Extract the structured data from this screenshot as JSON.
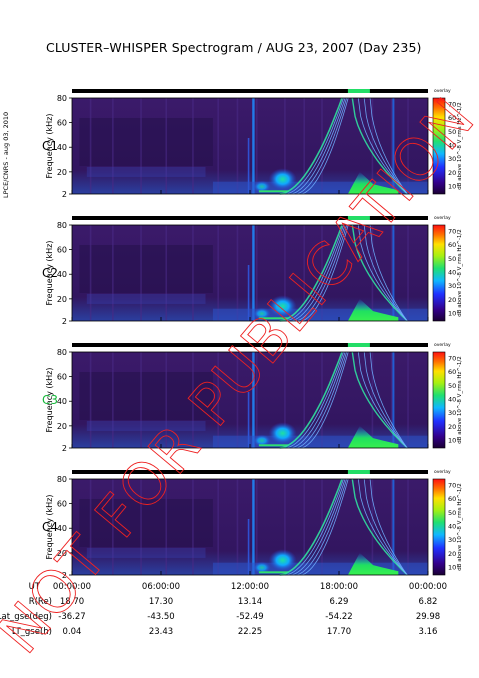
{
  "header": {
    "title": "CLUSTER–WHISPER Spectrogram / AUG 23, 2007 (Day 235)",
    "side_label": "LPCE/CNRS - aug 03, 2010",
    "watermark": "NOT FOR PUBLICATION"
  },
  "colors": {
    "background_field": "#3a1866",
    "spacecraft_label_default": "#000000",
    "spacecraft_label_c3": "#18b83c",
    "status_bar": "#000000",
    "status_marks": "#22dd66",
    "watermark": "#ee2222"
  },
  "chart_data": {
    "type": "heatmap",
    "xlabel": "",
    "ylabel": "Frequency (kHz)",
    "colorbar_label": "dB above 10^-8 V_rms Hz^-1/2",
    "colorbar_top_label": "overlay",
    "colorbar_ticks": [
      "10",
      "20",
      "30",
      "40",
      "50",
      "60",
      "70"
    ],
    "y_ticks": [
      "2",
      "20",
      "40",
      "60",
      "80"
    ],
    "x_ticks": [
      "00:00:00",
      "06:00:00",
      "12:00:00",
      "18:00:00",
      "00:00:00"
    ],
    "ylim": [
      2,
      80
    ],
    "xlim_hours": [
      0,
      24
    ],
    "panels": [
      {
        "spacecraft": "C1",
        "highlight": false
      },
      {
        "spacecraft": "C2",
        "highlight": false
      },
      {
        "spacecraft": "C3",
        "highlight": true
      },
      {
        "spacecraft": "C4",
        "highlight": false
      }
    ]
  },
  "ephemeris": {
    "rows": [
      {
        "label": "UT",
        "values": [
          "00:00:00",
          "06:00:00",
          "12:00:00",
          "18:00:00",
          "00:00:00"
        ],
        "axis": true
      },
      {
        "label": "R(Re)",
        "values": [
          "18.70",
          "17.30",
          "13.14",
          "6.29",
          "6.82"
        ]
      },
      {
        "label": "Lat_gse(deg)",
        "values": [
          "-36.27",
          "-43.50",
          "-52.49",
          "-54.22",
          "29.98"
        ]
      },
      {
        "label": "LT_gse(h)",
        "values": [
          "0.04",
          "23.43",
          "22.25",
          "17.70",
          "3.16"
        ]
      }
    ]
  }
}
